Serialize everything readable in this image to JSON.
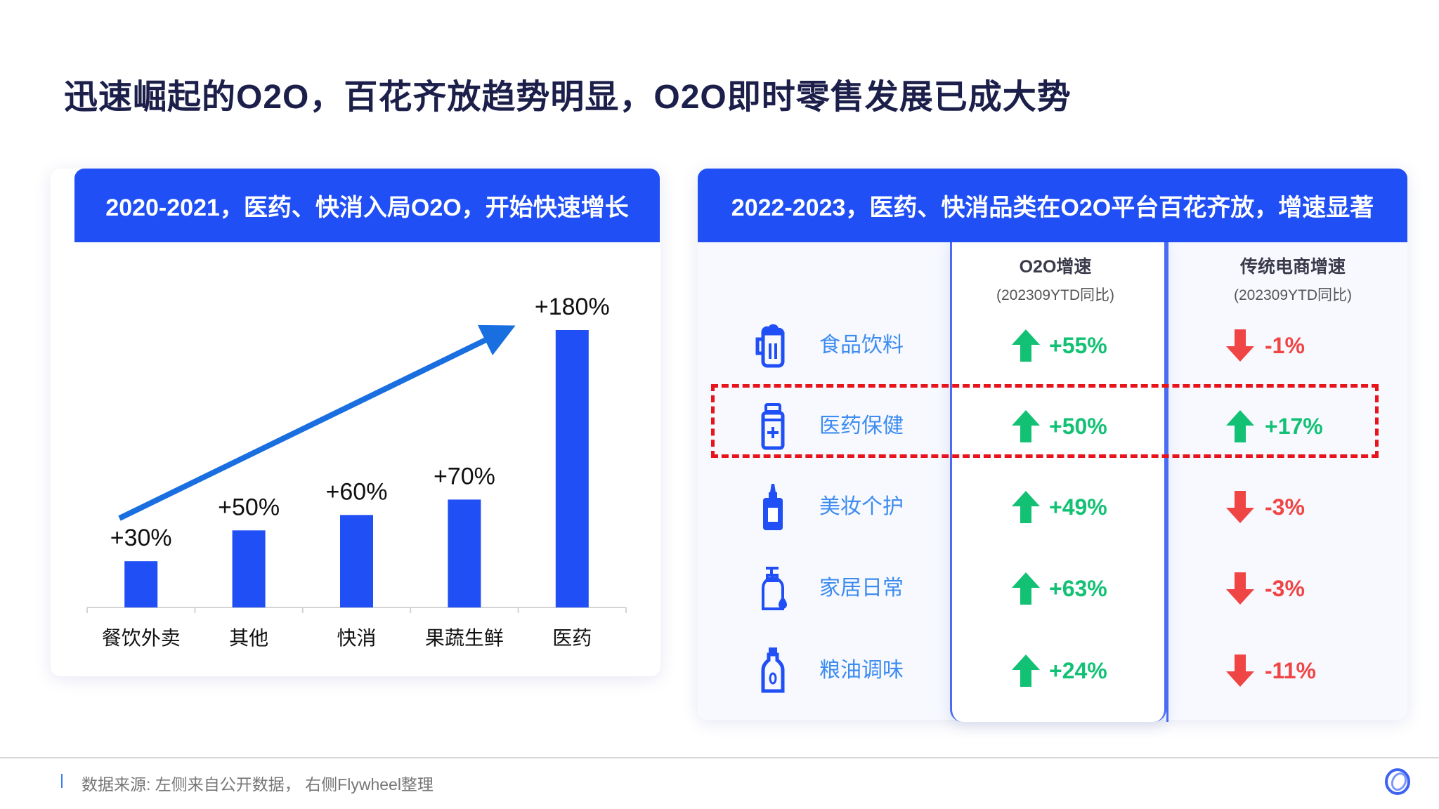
{
  "title": "迅速崛起的O2O，百花齐放趋势明显，O2O即时零售发展已成大势",
  "left_panel": {
    "header": "2020-2021，医药、快消入局O2O，开始快速增长"
  },
  "chart_data": {
    "type": "bar",
    "title": "2020-2021，医药、快消入局O2O，开始快速增长",
    "categories": [
      "餐饮外卖",
      "其他",
      "快消",
      "果蔬生鲜",
      "医药"
    ],
    "values": [
      30,
      50,
      60,
      70,
      180
    ],
    "labels": [
      "+30%",
      "+50%",
      "+60%",
      "+70%",
      "+180%"
    ],
    "ylim": [
      0,
      180
    ],
    "grid": false,
    "annotation": "upward-trend-arrow",
    "bar_color": "#1f4ff5"
  },
  "right_panel": {
    "header": "2022-2023，医药、快消品类在O2O平台百花齐放，增速显著",
    "col_o2o": {
      "title": "O2O增速",
      "sub": "(202309YTD同比)"
    },
    "col_trad": {
      "title": "传统电商增速",
      "sub": "(202309YTD同比)"
    },
    "rows": [
      {
        "icon": "beer-mug-icon",
        "label": "食品饮料",
        "o2o": "+55%",
        "o2o_dir": "up",
        "trad": "-1%",
        "trad_dir": "down"
      },
      {
        "icon": "medicine-bottle-icon",
        "label": "医药保健",
        "o2o": "+50%",
        "o2o_dir": "up",
        "trad": "+17%",
        "trad_dir": "up",
        "highlight": true
      },
      {
        "icon": "cosmetic-bottle-icon",
        "label": "美妆个护",
        "o2o": "+49%",
        "o2o_dir": "up",
        "trad": "-3%",
        "trad_dir": "down"
      },
      {
        "icon": "soap-dispenser-icon",
        "label": "家居日常",
        "o2o": "+63%",
        "o2o_dir": "up",
        "trad": "-3%",
        "trad_dir": "down"
      },
      {
        "icon": "oil-bottle-icon",
        "label": "粮油调味",
        "o2o": "+24%",
        "o2o_dir": "up",
        "trad": "-11%",
        "trad_dir": "down"
      }
    ]
  },
  "footer": {
    "source": "数据来源: 左侧来自公开数据， 右侧Flywheel整理"
  },
  "colors": {
    "primary": "#1f4ff5",
    "up": "#12c174",
    "down": "#f04545",
    "highlight": "#e8141c"
  }
}
